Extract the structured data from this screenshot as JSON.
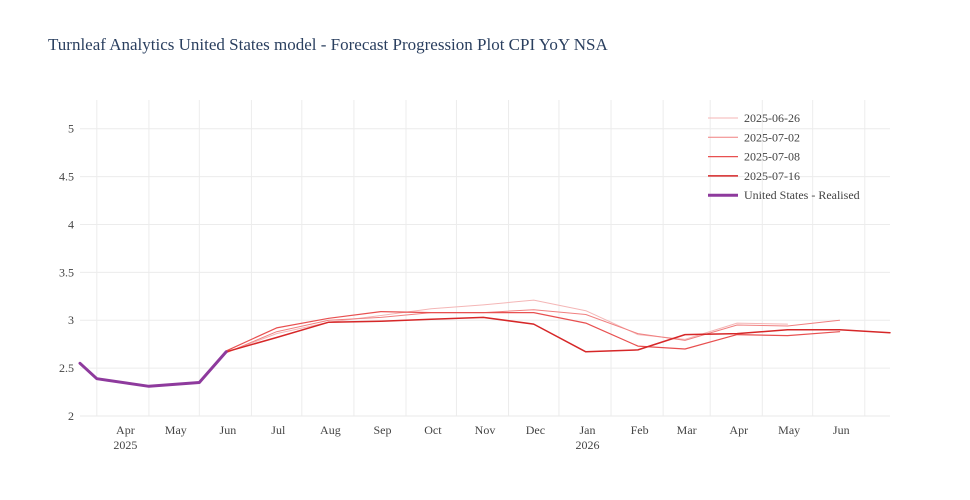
{
  "chart_data": {
    "type": "line",
    "title": "Turnleaf Analytics United States model - Forecast Progression Plot CPI YoY NSA",
    "xlabel": "",
    "ylabel": "",
    "ylim": [
      2,
      5.3
    ],
    "xlim": [
      "2025-03-05",
      "2026-06-30"
    ],
    "yticks": [
      "2",
      "2.5",
      "3",
      "3.5",
      "4",
      "4.5",
      "5"
    ],
    "xticks": [
      {
        "date": "2025-04-01",
        "label": "Apr",
        "sub": "2025"
      },
      {
        "date": "2025-05-01",
        "label": "May",
        "sub": ""
      },
      {
        "date": "2025-06-01",
        "label": "Jun",
        "sub": ""
      },
      {
        "date": "2025-07-01",
        "label": "Jul",
        "sub": ""
      },
      {
        "date": "2025-08-01",
        "label": "Aug",
        "sub": ""
      },
      {
        "date": "2025-09-01",
        "label": "Sep",
        "sub": ""
      },
      {
        "date": "2025-10-01",
        "label": "Oct",
        "sub": ""
      },
      {
        "date": "2025-11-01",
        "label": "Nov",
        "sub": ""
      },
      {
        "date": "2025-12-01",
        "label": "Dec",
        "sub": ""
      },
      {
        "date": "2026-01-01",
        "label": "Jan",
        "sub": "2026"
      },
      {
        "date": "2026-02-01",
        "label": "Feb",
        "sub": ""
      },
      {
        "date": "2026-03-01",
        "label": "Mar",
        "sub": ""
      },
      {
        "date": "2026-04-01",
        "label": "Apr",
        "sub": ""
      },
      {
        "date": "2026-05-01",
        "label": "May",
        "sub": ""
      },
      {
        "date": "2026-06-01",
        "label": "Jun",
        "sub": ""
      }
    ],
    "grid": true,
    "legend_position": "top-right",
    "series": [
      {
        "name": "2025-06-26",
        "color": "#f4b6b6",
        "width": 1,
        "x": [
          "2025-05-31",
          "2025-06-30",
          "2025-07-31",
          "2025-08-31",
          "2025-09-30",
          "2025-10-31",
          "2025-11-30",
          "2025-12-31",
          "2026-01-31",
          "2026-02-28",
          "2026-03-31",
          "2026-04-30"
        ],
        "y": [
          2.66,
          2.86,
          2.98,
          3.05,
          3.12,
          3.16,
          3.21,
          3.1,
          2.85,
          2.8,
          2.97,
          2.96
        ]
      },
      {
        "name": "2025-07-02",
        "color": "#f08080",
        "width": 1,
        "x": [
          "2025-05-31",
          "2025-06-30",
          "2025-07-31",
          "2025-08-31",
          "2025-09-30",
          "2025-10-31",
          "2025-11-30",
          "2025-12-31",
          "2026-01-31",
          "2026-02-28",
          "2026-03-31",
          "2026-04-30",
          "2026-05-31"
        ],
        "y": [
          2.66,
          2.88,
          3.0,
          3.03,
          3.08,
          3.08,
          3.11,
          3.06,
          2.86,
          2.79,
          2.95,
          2.94,
          3.0
        ]
      },
      {
        "name": "2025-07-08",
        "color": "#e85050",
        "width": 1.2,
        "x": [
          "2025-05-31",
          "2025-06-30",
          "2025-07-31",
          "2025-08-31",
          "2025-09-30",
          "2025-10-31",
          "2025-11-30",
          "2025-12-31",
          "2026-01-31",
          "2026-02-28",
          "2026-03-31",
          "2026-04-30",
          "2026-05-31"
        ],
        "y": [
          2.68,
          2.92,
          3.02,
          3.09,
          3.08,
          3.08,
          3.08,
          2.97,
          2.73,
          2.7,
          2.85,
          2.84,
          2.88
        ]
      },
      {
        "name": "2025-07-16",
        "color": "#d62728",
        "width": 1.5,
        "x": [
          "2025-05-31",
          "2025-06-30",
          "2025-07-31",
          "2025-08-31",
          "2025-09-30",
          "2025-10-31",
          "2025-11-30",
          "2025-12-31",
          "2026-01-31",
          "2026-02-28",
          "2026-03-31",
          "2026-04-30",
          "2026-05-31",
          "2026-06-30"
        ],
        "y": [
          2.67,
          2.82,
          2.98,
          2.99,
          3.01,
          3.03,
          2.96,
          2.67,
          2.69,
          2.85,
          2.86,
          2.9,
          2.9,
          2.87
        ]
      },
      {
        "name": "United States - Realised",
        "color": "#8e3a9d",
        "width": 3,
        "x": [
          "2025-03-05",
          "2025-03-15",
          "2025-04-15",
          "2025-05-15",
          "2025-05-31"
        ],
        "y": [
          2.55,
          2.39,
          2.31,
          2.35,
          2.67
        ]
      }
    ]
  }
}
